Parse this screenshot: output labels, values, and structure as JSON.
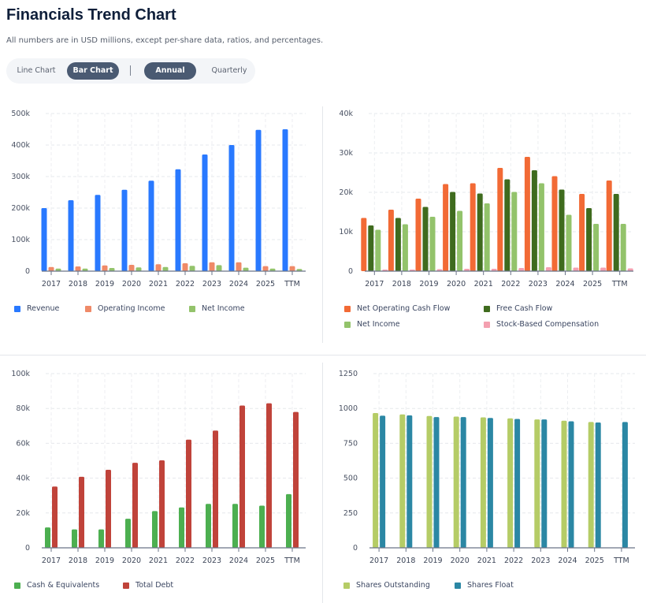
{
  "header": {
    "title": "Financials Trend Chart",
    "subtitle": "All numbers are in USD millions, except per-share data, ratios, and percentages."
  },
  "toggles": {
    "line": "Line Chart",
    "bar": "Bar Chart",
    "annual": "Annual",
    "quarterly": "Quarterly",
    "active_type": "Bar Chart",
    "active_period": "Annual"
  },
  "chart_data": [
    {
      "type": "bar",
      "categories": [
        "2017",
        "2018",
        "2019",
        "2020",
        "2021",
        "2022",
        "2023",
        "2024",
        "2025",
        "TTM"
      ],
      "ylim": [
        0,
        500000
      ],
      "yticks": [
        "0",
        "100k",
        "200k",
        "300k",
        "400k",
        "500k"
      ],
      "grid": true,
      "legend": "bottom",
      "series": [
        {
          "name": "Revenue",
          "color": "#2979ff",
          "values": [
            200000,
            225000,
            242000,
            258000,
            287000,
            323000,
            370000,
            400000,
            448000,
            450000
          ]
        },
        {
          "name": "Operating Income",
          "color": "#ef8a68",
          "values": [
            13000,
            15000,
            18000,
            20000,
            22000,
            25000,
            28000,
            28000,
            16000,
            16000
          ]
        },
        {
          "name": "Net Income",
          "color": "#93c36b",
          "values": [
            8000,
            8000,
            10000,
            12000,
            13000,
            17000,
            19000,
            11000,
            8000,
            7000
          ]
        }
      ]
    },
    {
      "type": "bar",
      "categories": [
        "2017",
        "2018",
        "2019",
        "2020",
        "2021",
        "2022",
        "2023",
        "2024",
        "2025",
        "TTM"
      ],
      "ylim": [
        0,
        40000
      ],
      "yticks": [
        "0",
        "10k",
        "20k",
        "30k",
        "40k"
      ],
      "grid": true,
      "legend": "bottom",
      "series": [
        {
          "name": "Net Operating Cash Flow",
          "color": "#f26a35",
          "values": [
            13500,
            15600,
            18400,
            22100,
            22300,
            26200,
            29000,
            24100,
            19600,
            23000
          ]
        },
        {
          "name": "Free Cash Flow",
          "color": "#3f6b1e",
          "values": [
            11600,
            13500,
            16300,
            20100,
            19700,
            23300,
            25600,
            20700,
            16000,
            19600
          ]
        },
        {
          "name": "Net Income",
          "color": "#93c36b",
          "values": [
            10500,
            11900,
            13800,
            15300,
            17200,
            20100,
            22300,
            14300,
            12000,
            12000
          ]
        },
        {
          "name": "Stock-Based Compensation",
          "color": "#f4a0b0",
          "values": [
            400,
            400,
            500,
            600,
            600,
            800,
            1000,
            900,
            900,
            700
          ]
        }
      ]
    },
    {
      "type": "bar",
      "categories": [
        "2017",
        "2018",
        "2019",
        "2020",
        "2021",
        "2022",
        "2023",
        "2024",
        "2025",
        "TTM"
      ],
      "ylim": [
        0,
        100000
      ],
      "yticks": [
        "0",
        "20k",
        "40k",
        "60k",
        "80k",
        "100k"
      ],
      "grid": true,
      "legend": "bottom",
      "series": [
        {
          "name": "Cash & Equivalents",
          "color": "#4caf50",
          "values": [
            11700,
            10600,
            10600,
            16700,
            21100,
            23200,
            25200,
            25200,
            24200,
            30800
          ]
        },
        {
          "name": "Total Debt",
          "color": "#c0433a",
          "values": [
            35200,
            40800,
            44800,
            48800,
            50200,
            62100,
            67300,
            81700,
            83000,
            78000
          ]
        }
      ]
    },
    {
      "type": "bar",
      "categories": [
        "2017",
        "2018",
        "2019",
        "2020",
        "2021",
        "2022",
        "2023",
        "2024",
        "2025",
        "TTM"
      ],
      "ylim": [
        0,
        1250
      ],
      "yticks": [
        "0",
        "250",
        "500",
        "750",
        "1000",
        "1250"
      ],
      "grid": true,
      "legend": "bottom",
      "series": [
        {
          "name": "Shares Outstanding",
          "color": "#b5cc66",
          "values": [
            967,
            957,
            946,
            942,
            936,
            929,
            921,
            912,
            903,
            null
          ]
        },
        {
          "name": "Shares Float",
          "color": "#2b87a4",
          "values": [
            948,
            950,
            938,
            938,
            932,
            925,
            921,
            908,
            899,
            903
          ]
        }
      ]
    }
  ]
}
